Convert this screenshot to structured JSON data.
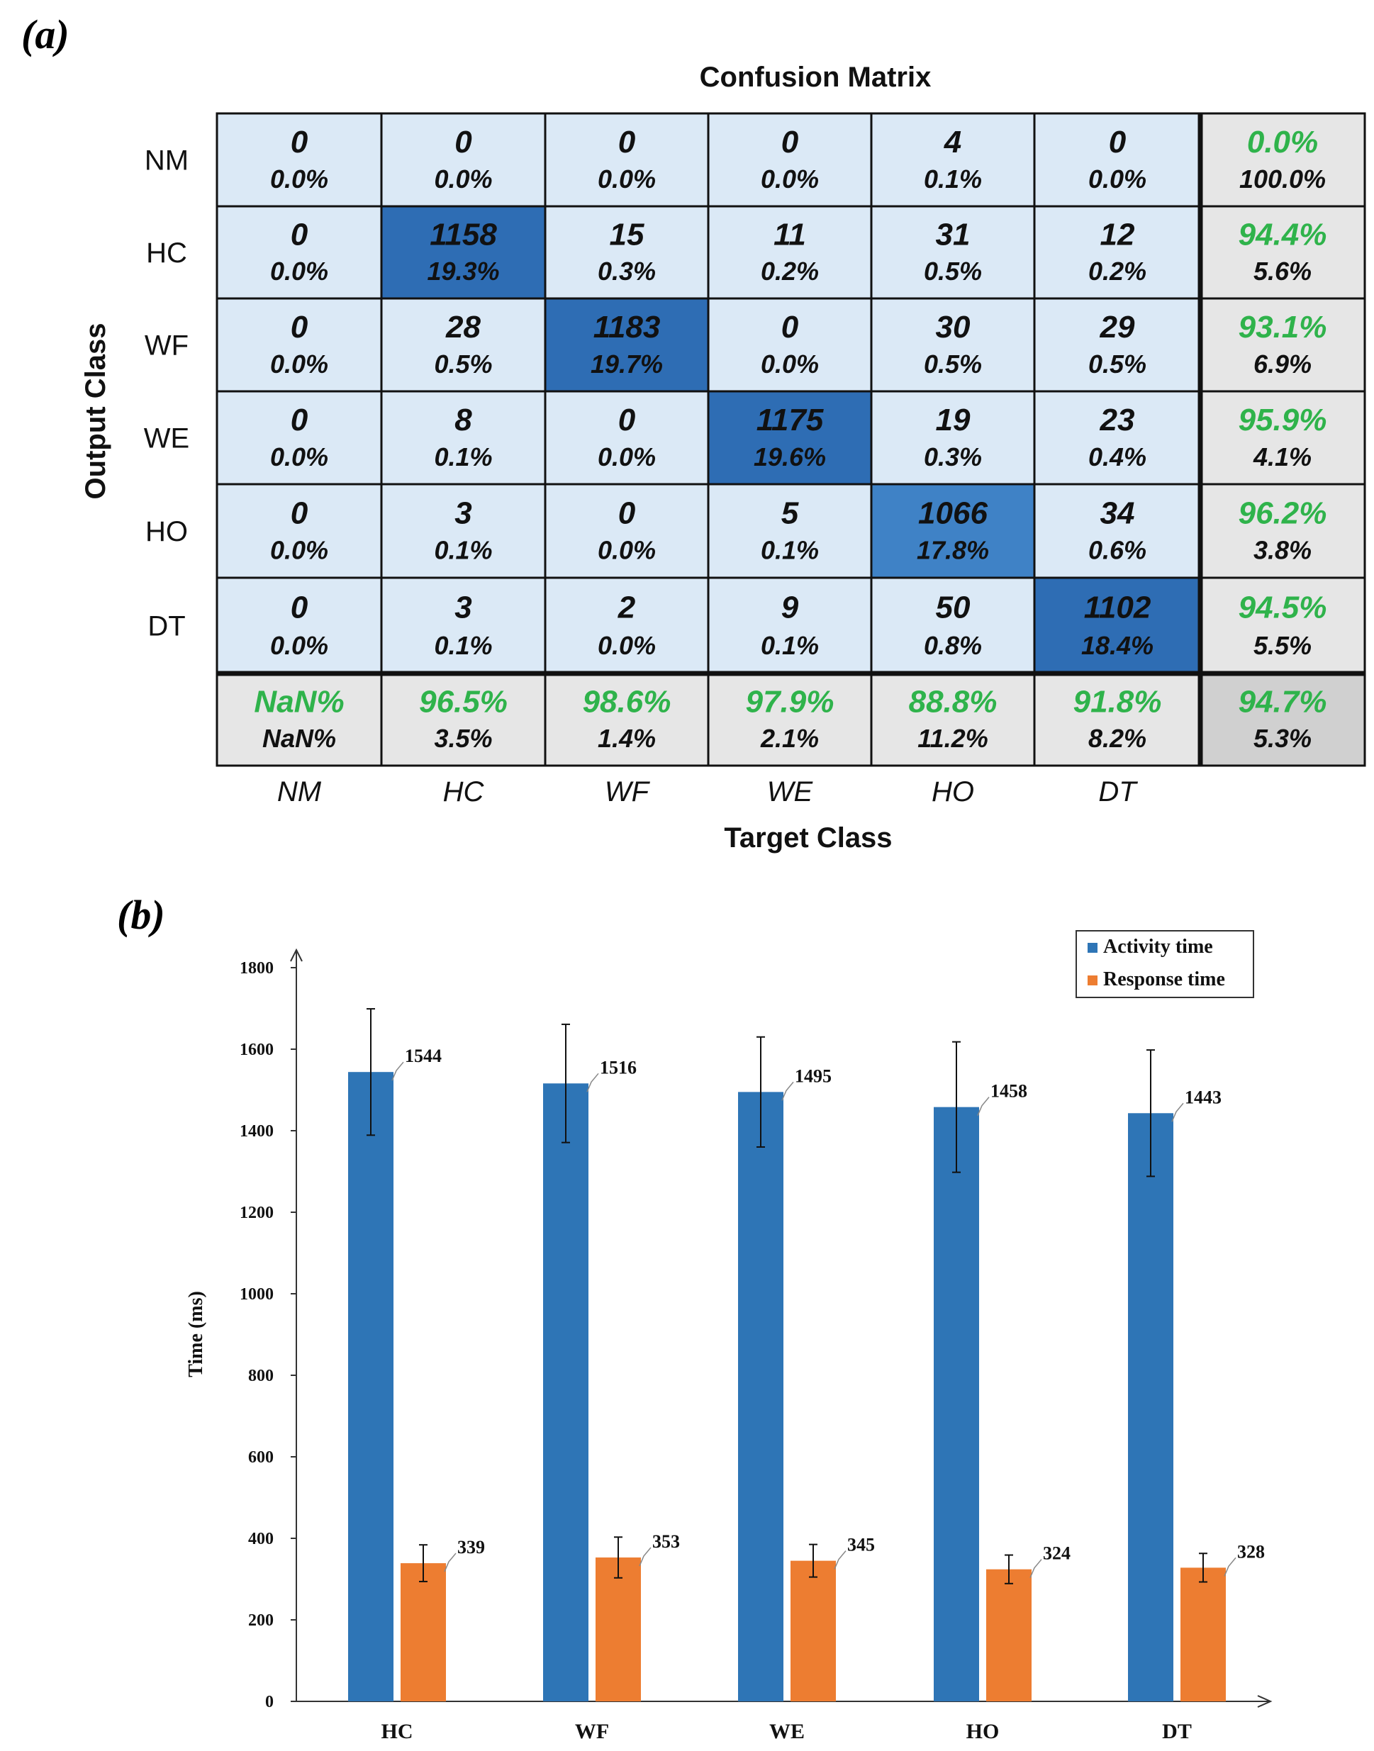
{
  "panels": {
    "a_label": "(a)",
    "b_label": "(b)"
  },
  "chart_data": [
    {
      "type": "heatmap",
      "title": "Confusion Matrix",
      "xlabel": "Target Class",
      "ylabel": "Output Class",
      "row_labels": [
        "NM",
        "HC",
        "WF",
        "WE",
        "HO",
        "DT"
      ],
      "col_labels": [
        "NM",
        "HC",
        "WF",
        "WE",
        "HO",
        "DT"
      ],
      "cells": [
        [
          {
            "count": "0",
            "pct": "0.0%"
          },
          {
            "count": "0",
            "pct": "0.0%"
          },
          {
            "count": "0",
            "pct": "0.0%"
          },
          {
            "count": "0",
            "pct": "0.0%"
          },
          {
            "count": "4",
            "pct": "0.1%"
          },
          {
            "count": "0",
            "pct": "0.0%"
          }
        ],
        [
          {
            "count": "0",
            "pct": "0.0%"
          },
          {
            "count": "1158",
            "pct": "19.3%"
          },
          {
            "count": "15",
            "pct": "0.3%"
          },
          {
            "count": "11",
            "pct": "0.2%"
          },
          {
            "count": "31",
            "pct": "0.5%"
          },
          {
            "count": "12",
            "pct": "0.2%"
          }
        ],
        [
          {
            "count": "0",
            "pct": "0.0%"
          },
          {
            "count": "28",
            "pct": "0.5%"
          },
          {
            "count": "1183",
            "pct": "19.7%"
          },
          {
            "count": "0",
            "pct": "0.0%"
          },
          {
            "count": "30",
            "pct": "0.5%"
          },
          {
            "count": "29",
            "pct": "0.5%"
          }
        ],
        [
          {
            "count": "0",
            "pct": "0.0%"
          },
          {
            "count": "8",
            "pct": "0.1%"
          },
          {
            "count": "0",
            "pct": "0.0%"
          },
          {
            "count": "1175",
            "pct": "19.6%"
          },
          {
            "count": "19",
            "pct": "0.3%"
          },
          {
            "count": "23",
            "pct": "0.4%"
          }
        ],
        [
          {
            "count": "0",
            "pct": "0.0%"
          },
          {
            "count": "3",
            "pct": "0.1%"
          },
          {
            "count": "0",
            "pct": "0.0%"
          },
          {
            "count": "5",
            "pct": "0.1%"
          },
          {
            "count": "1066",
            "pct": "17.8%"
          },
          {
            "count": "34",
            "pct": "0.6%"
          }
        ],
        [
          {
            "count": "0",
            "pct": "0.0%"
          },
          {
            "count": "3",
            "pct": "0.1%"
          },
          {
            "count": "2",
            "pct": "0.0%"
          },
          {
            "count": "9",
            "pct": "0.1%"
          },
          {
            "count": "50",
            "pct": "0.8%"
          },
          {
            "count": "1102",
            "pct": "18.4%"
          }
        ]
      ],
      "row_summary": [
        {
          "correct": "0.0%",
          "error": "100.0%"
        },
        {
          "correct": "94.4%",
          "error": "5.6%"
        },
        {
          "correct": "93.1%",
          "error": "6.9%"
        },
        {
          "correct": "95.9%",
          "error": "4.1%"
        },
        {
          "correct": "96.2%",
          "error": "3.8%"
        },
        {
          "correct": "94.5%",
          "error": "5.5%"
        }
      ],
      "col_summary": [
        {
          "correct": "NaN%",
          "error": "NaN%"
        },
        {
          "correct": "96.5%",
          "error": "3.5%"
        },
        {
          "correct": "98.6%",
          "error": "1.4%"
        },
        {
          "correct": "97.9%",
          "error": "2.1%"
        },
        {
          "correct": "88.8%",
          "error": "11.2%"
        },
        {
          "correct": "91.8%",
          "error": "8.2%"
        }
      ],
      "overall": {
        "correct": "94.7%",
        "error": "5.3%"
      },
      "colors": {
        "diagonal": "#2e6db4",
        "diagonal_lighter": "#3f82c6",
        "offdiag": "#dbe9f6",
        "summary": "#e6e6e6",
        "overall": "#d0d0d0",
        "correct_text": "#2fb34b",
        "text": "#111111"
      }
    },
    {
      "type": "bar",
      "ylabel": "Time (ms)",
      "xlabel": "",
      "categories": [
        "HC",
        "WF",
        "WE",
        "HO",
        "DT"
      ],
      "series": [
        {
          "name": "Activity time",
          "values": [
            1544,
            1516,
            1495,
            1458,
            1443
          ],
          "errors": [
            155,
            145,
            135,
            160,
            155
          ],
          "color": "#2e75b6"
        },
        {
          "name": "Response time",
          "values": [
            339,
            353,
            345,
            324,
            328
          ],
          "errors": [
            45,
            50,
            40,
            35,
            35
          ],
          "color": "#ed7d31"
        }
      ],
      "ylim": [
        0,
        1800
      ],
      "yticks": [
        0,
        200,
        400,
        600,
        800,
        1000,
        1200,
        1400,
        1600,
        1800
      ],
      "legend": "top-right",
      "grid": false
    }
  ]
}
